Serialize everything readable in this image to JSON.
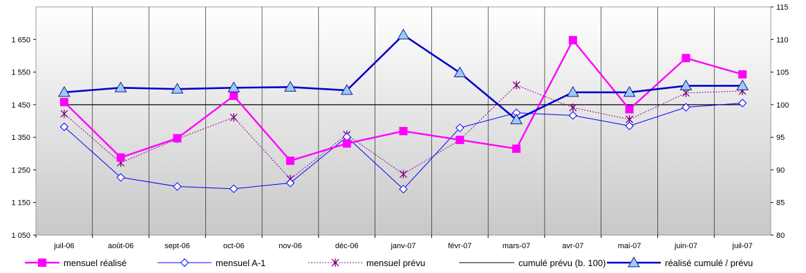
{
  "chart_data": {
    "type": "line",
    "categories": [
      "juil-06",
      "août-06",
      "sept-06",
      "oct-06",
      "nov-06",
      "déc-06",
      "janv-07",
      "févr-07",
      "mars-07",
      "avr-07",
      "mai-07",
      "juin-07",
      "juil-07"
    ],
    "y_left": {
      "ylim": [
        1050,
        1750
      ],
      "ticks": [
        "1 050",
        "1 150",
        "1 250",
        "1 350",
        "1 450",
        "1 550",
        "1 650"
      ],
      "tick_values": [
        1050,
        1150,
        1250,
        1350,
        1450,
        1550,
        1650
      ]
    },
    "y_right": {
      "ylim": [
        80,
        115
      ],
      "ticks": [
        "80",
        "85",
        "90",
        "95",
        "100",
        "105",
        "110",
        "115"
      ],
      "tick_values": [
        80,
        85,
        90,
        95,
        100,
        105,
        110,
        115
      ]
    },
    "grid": "vertical",
    "legend_position": "bottom",
    "series": [
      {
        "name": "mensuel réalisé",
        "axis": "left",
        "color": "#ff00ff",
        "marker": "square",
        "values": [
          1458,
          1288,
          1347,
          1477,
          1278,
          1331,
          1369,
          1342,
          1315,
          1648,
          1436,
          1593,
          1543
        ]
      },
      {
        "name": "mensuel A-1",
        "axis": "left",
        "color": "#0000ff",
        "marker": "diamond",
        "values": [
          1382,
          1227,
          1199,
          1192,
          1210,
          1351,
          1191,
          1379,
          1425,
          1417,
          1385,
          1442,
          1455
        ]
      },
      {
        "name": "mensuel prévu",
        "axis": "left",
        "color": "#800080",
        "marker": "star",
        "dash": "dotted",
        "values": [
          1422,
          1272,
          1345,
          1411,
          1222,
          1358,
          1237,
          1342,
          1510,
          1441,
          1405,
          1486,
          1492
        ]
      },
      {
        "name": "cumulé prévu (b. 100)",
        "axis": "right",
        "color": "#000000",
        "marker": "none",
        "values": [
          100,
          100,
          100,
          100,
          100,
          100,
          100,
          100,
          100,
          100,
          100,
          100,
          100
        ]
      },
      {
        "name": "réalisé cumulé / prévu",
        "axis": "right",
        "color": "#0000cc",
        "marker": "triangle",
        "thick": true,
        "values": [
          101.9,
          102.6,
          102.4,
          102.6,
          102.7,
          102.2,
          110.7,
          104.9,
          97.7,
          101.9,
          101.9,
          102.9,
          102.9
        ]
      }
    ]
  }
}
